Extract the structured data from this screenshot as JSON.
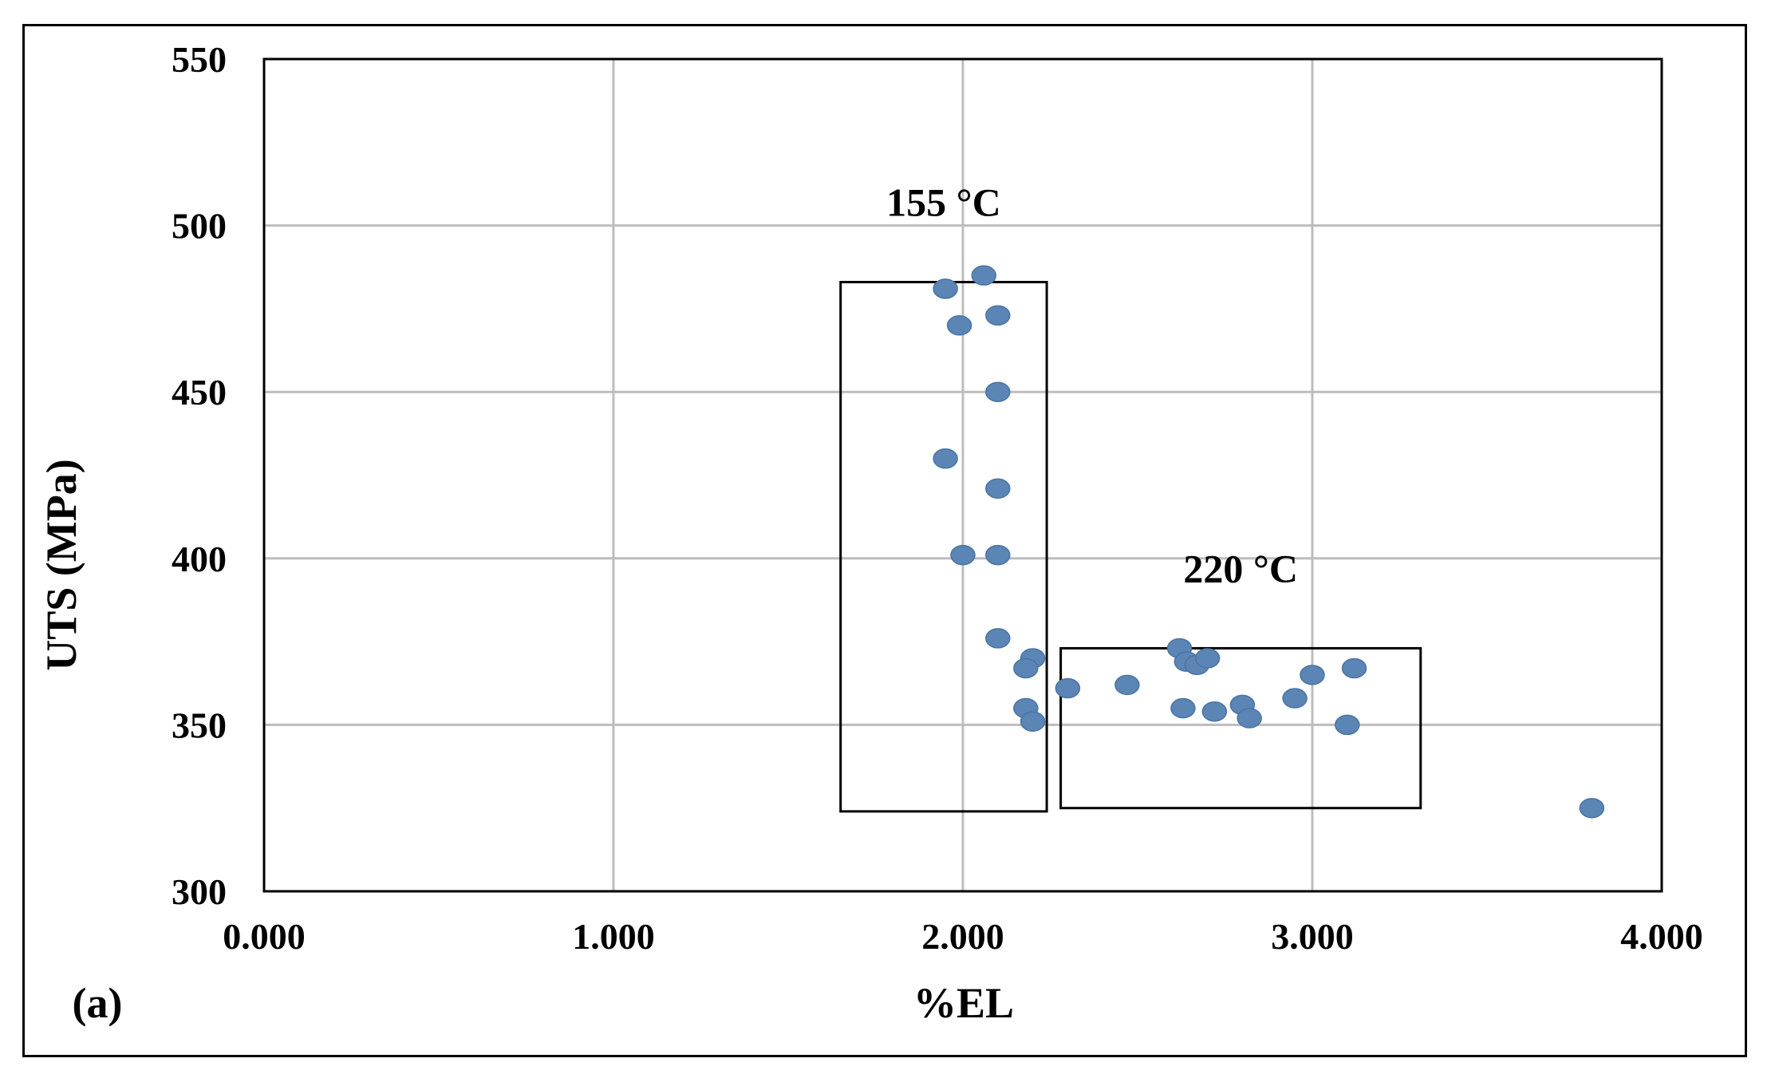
{
  "chart_data": {
    "type": "scatter",
    "panel_label": "(a)",
    "xlabel": "%EL",
    "ylabel": "UTS (MPa)",
    "xlim": [
      0,
      4
    ],
    "ylim": [
      300,
      550
    ],
    "x_ticks": [
      0,
      1,
      2,
      3,
      4
    ],
    "x_tick_labels": [
      "0.000",
      "1.000",
      "2.000",
      "3.000",
      "4.000"
    ],
    "y_ticks": [
      300,
      350,
      400,
      450,
      500,
      550
    ],
    "y_tick_labels": [
      "300",
      "350",
      "400",
      "450",
      "500",
      "550"
    ],
    "grid": true,
    "marker_color": "#5b85b5",
    "series": [
      {
        "points": [
          {
            "x": 2.06,
            "y": 485
          },
          {
            "x": 1.95,
            "y": 481
          },
          {
            "x": 2.1,
            "y": 473
          },
          {
            "x": 1.99,
            "y": 470
          },
          {
            "x": 2.1,
            "y": 450
          },
          {
            "x": 1.95,
            "y": 430
          },
          {
            "x": 2.1,
            "y": 421
          },
          {
            "x": 2.0,
            "y": 401
          },
          {
            "x": 2.1,
            "y": 401
          },
          {
            "x": 2.1,
            "y": 376
          },
          {
            "x": 2.2,
            "y": 370
          },
          {
            "x": 2.18,
            "y": 367
          },
          {
            "x": 2.18,
            "y": 355
          },
          {
            "x": 2.2,
            "y": 351
          },
          {
            "x": 2.3,
            "y": 361
          },
          {
            "x": 2.47,
            "y": 362
          },
          {
            "x": 2.62,
            "y": 373
          },
          {
            "x": 2.64,
            "y": 369
          },
          {
            "x": 2.67,
            "y": 368
          },
          {
            "x": 2.7,
            "y": 370
          },
          {
            "x": 2.63,
            "y": 355
          },
          {
            "x": 2.72,
            "y": 354
          },
          {
            "x": 2.8,
            "y": 356
          },
          {
            "x": 2.82,
            "y": 352
          },
          {
            "x": 2.95,
            "y": 358
          },
          {
            "x": 3.0,
            "y": 365
          },
          {
            "x": 3.12,
            "y": 367
          },
          {
            "x": 3.1,
            "y": 350
          },
          {
            "x": 3.8,
            "y": 325
          }
        ]
      }
    ],
    "annotations": [
      {
        "text": "155 °C",
        "box": {
          "x0": 1.65,
          "x1": 2.24,
          "y0": 324,
          "y1": 483
        }
      },
      {
        "text": "220 °C",
        "box": {
          "x0": 2.28,
          "x1": 3.31,
          "y0": 325,
          "y1": 373
        }
      }
    ]
  }
}
